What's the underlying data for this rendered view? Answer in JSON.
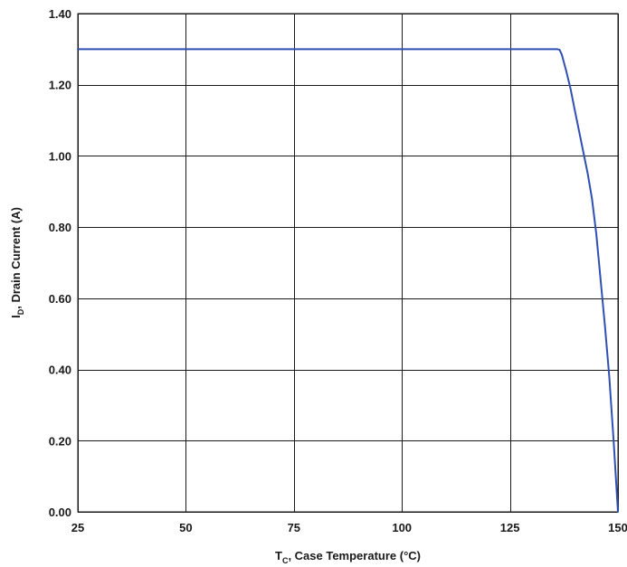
{
  "chart_data": {
    "type": "line",
    "title": "",
    "xlabel": {
      "main": "T",
      "sub": "C",
      "rest": ", Case Temperature (°C)"
    },
    "ylabel": {
      "main": "I",
      "sub": "D",
      "rest": ", Drain Current (A)"
    },
    "xlim": [
      25,
      150
    ],
    "ylim": [
      0,
      1.4
    ],
    "x_ticks": [
      "25",
      "50",
      "75",
      "100",
      "125",
      "150"
    ],
    "y_ticks": [
      "0.00",
      "0.20",
      "0.40",
      "0.60",
      "0.80",
      "1.00",
      "1.20",
      "1.40"
    ],
    "grid": true,
    "series": [
      {
        "color": "#2e4fb3",
        "points": [
          [
            25,
            1.3
          ],
          [
            136,
            1.3
          ],
          [
            136.5,
            1.298
          ],
          [
            137,
            1.285
          ],
          [
            138,
            1.24
          ],
          [
            139,
            1.19
          ],
          [
            140,
            1.13
          ],
          [
            141,
            1.07
          ],
          [
            142,
            1.01
          ],
          [
            143,
            0.95
          ],
          [
            144,
            0.88
          ],
          [
            145,
            0.78
          ],
          [
            146,
            0.65
          ],
          [
            147,
            0.52
          ],
          [
            148,
            0.38
          ],
          [
            149,
            0.2
          ],
          [
            150,
            0.0
          ]
        ]
      }
    ]
  }
}
